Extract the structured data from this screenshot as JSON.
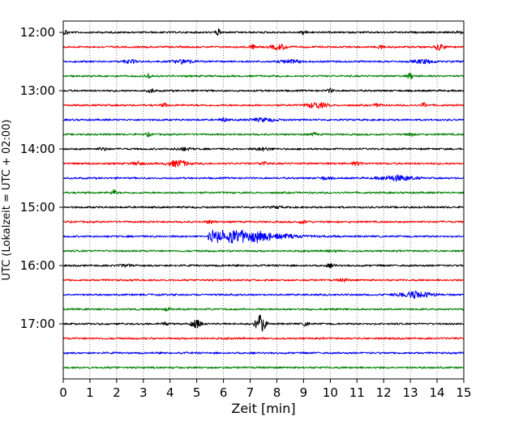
{
  "chart_data": {
    "type": "line",
    "title": "",
    "xlabel": "Zeit  [min]",
    "ylabel": "UTC (Lokalzeit = UTC + 02:00)",
    "xlim": [
      0,
      15
    ],
    "x_ticks": [
      "0",
      "1",
      "2",
      "3",
      "4",
      "5",
      "6",
      "7",
      "8",
      "9",
      "10",
      "11",
      "12",
      "13",
      "14",
      "15"
    ],
    "y_ticks": [
      "12:00",
      "13:00",
      "14:00",
      "15:00",
      "16:00",
      "17:00"
    ],
    "grid": "vertical dotted",
    "trace_interval_min": 15,
    "row_colors": [
      "#000000",
      "#ff0000",
      "#0000ff",
      "#008000"
    ],
    "rows": [
      {
        "start": "12:00",
        "color": "#000000",
        "events": [
          {
            "t": 0.1,
            "amp": 0.8,
            "dur": 0.15
          },
          {
            "t": 5.8,
            "amp": 1.0,
            "dur": 0.15
          },
          {
            "t": 9.0,
            "amp": 0.7,
            "dur": 0.15
          },
          {
            "t": 14.8,
            "amp": 0.8,
            "dur": 0.15
          }
        ]
      },
      {
        "start": "12:15",
        "color": "#ff0000",
        "events": [
          {
            "t": 7.1,
            "amp": 0.5,
            "dur": 0.3
          },
          {
            "t": 8.1,
            "amp": 0.8,
            "dur": 0.5
          },
          {
            "t": 11.9,
            "amp": 0.8,
            "dur": 0.15
          },
          {
            "t": 14.1,
            "amp": 0.9,
            "dur": 0.3
          }
        ]
      },
      {
        "start": "12:30",
        "color": "#0000ff",
        "events": [
          {
            "t": 2.5,
            "amp": 0.5,
            "dur": 0.4
          },
          {
            "t": 4.5,
            "amp": 0.6,
            "dur": 0.6
          },
          {
            "t": 8.5,
            "amp": 0.5,
            "dur": 0.6
          },
          {
            "t": 13.5,
            "amp": 0.6,
            "dur": 0.6
          }
        ]
      },
      {
        "start": "12:45",
        "color": "#008000",
        "events": [
          {
            "t": 3.2,
            "amp": 0.7,
            "dur": 0.2
          },
          {
            "t": 13.0,
            "amp": 0.9,
            "dur": 0.2
          }
        ]
      },
      {
        "start": "13:00",
        "color": "#000000",
        "events": [
          {
            "t": 3.3,
            "amp": 0.6,
            "dur": 0.2
          },
          {
            "t": 10.0,
            "amp": 0.5,
            "dur": 0.2
          }
        ]
      },
      {
        "start": "13:15",
        "color": "#ff0000",
        "events": [
          {
            "t": 3.8,
            "amp": 0.5,
            "dur": 0.2
          },
          {
            "t": 9.5,
            "amp": 0.9,
            "dur": 0.6
          },
          {
            "t": 11.8,
            "amp": 0.6,
            "dur": 0.2
          },
          {
            "t": 13.5,
            "amp": 0.7,
            "dur": 0.15
          }
        ]
      },
      {
        "start": "13:30",
        "color": "#0000ff",
        "events": [
          {
            "t": 6.0,
            "amp": 0.6,
            "dur": 0.2
          },
          {
            "t": 7.5,
            "amp": 0.5,
            "dur": 0.8
          }
        ]
      },
      {
        "start": "13:45",
        "color": "#008000",
        "events": [
          {
            "t": 3.2,
            "amp": 0.6,
            "dur": 0.15
          },
          {
            "t": 9.4,
            "amp": 0.6,
            "dur": 0.15
          },
          {
            "t": 13.0,
            "amp": 0.8,
            "dur": 0.15
          }
        ]
      },
      {
        "start": "14:00",
        "color": "#000000",
        "events": [
          {
            "t": 1.5,
            "amp": 0.4,
            "dur": 0.3
          },
          {
            "t": 4.5,
            "amp": 0.4,
            "dur": 0.5
          },
          {
            "t": 7.5,
            "amp": 0.4,
            "dur": 0.5
          }
        ]
      },
      {
        "start": "14:15",
        "color": "#ff0000",
        "events": [
          {
            "t": 2.8,
            "amp": 0.5,
            "dur": 0.3
          },
          {
            "t": 4.3,
            "amp": 1.0,
            "dur": 0.6
          },
          {
            "t": 7.5,
            "amp": 0.5,
            "dur": 0.3
          },
          {
            "t": 11.0,
            "amp": 0.5,
            "dur": 0.3
          }
        ]
      },
      {
        "start": "14:30",
        "color": "#0000ff",
        "events": [
          {
            "t": 9.8,
            "amp": 0.4,
            "dur": 0.3
          },
          {
            "t": 12.5,
            "amp": 0.8,
            "dur": 1.0
          }
        ]
      },
      {
        "start": "14:45",
        "color": "#008000",
        "events": [
          {
            "t": 1.9,
            "amp": 0.9,
            "dur": 0.15
          }
        ]
      },
      {
        "start": "15:00",
        "color": "#000000",
        "events": [
          {
            "t": 8.0,
            "amp": 0.3,
            "dur": 0.3
          }
        ]
      },
      {
        "start": "15:15",
        "color": "#ff0000",
        "events": [
          {
            "t": 5.5,
            "amp": 0.4,
            "dur": 0.3
          },
          {
            "t": 9.0,
            "amp": 0.4,
            "dur": 0.3
          }
        ]
      },
      {
        "start": "15:30",
        "color": "#0000ff",
        "events": [
          {
            "t": 5.4,
            "amp": 9.0,
            "dur": 5.0,
            "quake": true
          }
        ]
      },
      {
        "start": "15:45",
        "color": "#008000",
        "events": [
          {
            "t": 10.0,
            "amp": 0.4,
            "dur": 0.3
          }
        ]
      },
      {
        "start": "16:00",
        "color": "#000000",
        "events": [
          {
            "t": 2.3,
            "amp": 0.4,
            "dur": 0.3
          },
          {
            "t": 10.0,
            "amp": 0.4,
            "dur": 0.3
          }
        ]
      },
      {
        "start": "16:15",
        "color": "#ff0000",
        "events": [
          {
            "t": 10.5,
            "amp": 0.4,
            "dur": 0.3
          }
        ]
      },
      {
        "start": "16:30",
        "color": "#0000ff",
        "events": [
          {
            "t": 13.2,
            "amp": 0.9,
            "dur": 1.0
          }
        ]
      },
      {
        "start": "16:45",
        "color": "#008000",
        "events": [
          {
            "t": 3.9,
            "amp": 0.4,
            "dur": 0.2
          }
        ]
      },
      {
        "start": "17:00",
        "color": "#000000",
        "events": [
          {
            "t": 3.8,
            "amp": 0.5,
            "dur": 0.15
          },
          {
            "t": 5.0,
            "amp": 1.2,
            "dur": 0.3
          },
          {
            "t": 7.4,
            "amp": 2.8,
            "dur": 0.3
          },
          {
            "t": 9.1,
            "amp": 0.8,
            "dur": 0.15
          }
        ]
      },
      {
        "start": "17:15",
        "color": "#ff0000",
        "events": []
      },
      {
        "start": "17:30",
        "color": "#0000ff",
        "events": []
      },
      {
        "start": "17:45",
        "color": "#008000",
        "events": []
      }
    ]
  }
}
